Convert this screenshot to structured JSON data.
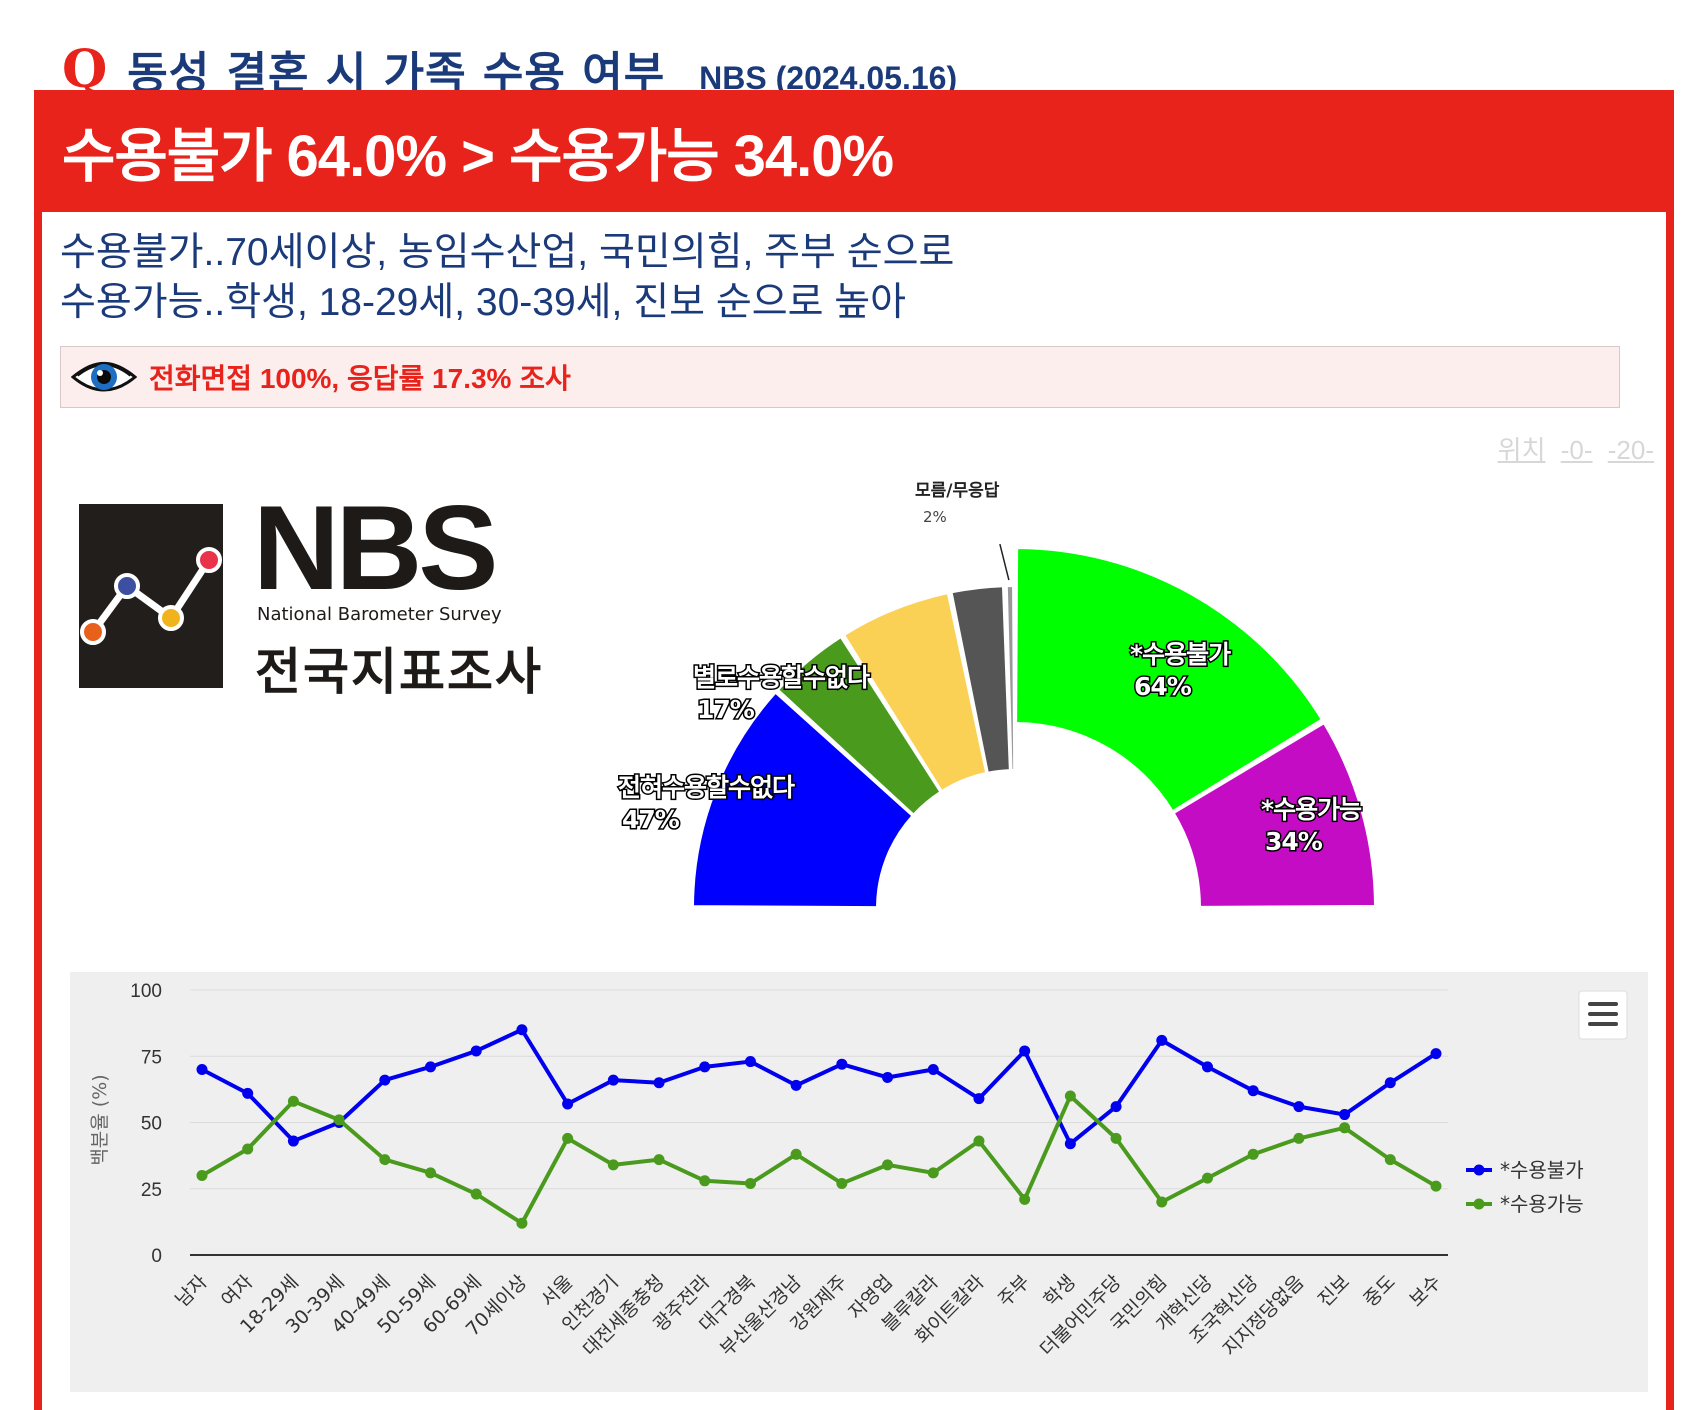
{
  "header": {
    "q_mark": "Q",
    "title": "동성 결혼 시 가족 수용 여부",
    "source": "NBS (2024.05.16)"
  },
  "banner": {
    "headline": "수용불가 64.0% > 수용가능 34.0%"
  },
  "summary": {
    "line1": "수용불가..70세이상, 농임수산업, 국민의힘, 주부 순으로",
    "line2": "수용가능..학생, 18-29세, 30-39세, 진보 순으로 높아"
  },
  "method": {
    "icon": "eye-icon",
    "text": "전화면접 100%, 응답률 17.3% 조사"
  },
  "pager": {
    "label": "위치",
    "links": [
      "-0-",
      "-20-"
    ]
  },
  "logo": {
    "brand": "NBS",
    "english": "National Barometer Survey",
    "korean": "전국지표조사"
  },
  "colors": {
    "accent": "#e8231b",
    "navy": "#1b3a7a"
  },
  "chart_data": [
    {
      "type": "pie",
      "subtype": "semi-donut",
      "inner": [
        {
          "label": "전혀수용할수없다",
          "value": 47,
          "display": "47%",
          "color": "#0000ff"
        },
        {
          "label": "별로수용할수없다",
          "value": 17,
          "display": "17%",
          "color": "#4a9a1e"
        },
        {
          "label": "",
          "value": 23,
          "display": "",
          "color": "#fbd155"
        },
        {
          "label": "",
          "value": 11,
          "display": "",
          "color": "#555555"
        },
        {
          "label": "모름/무응답",
          "value": 2,
          "display": "2%",
          "color": "#999999"
        }
      ],
      "outer": [
        {
          "label": "*수용불가",
          "value": 64,
          "display": "64%",
          "color": "#00ff00"
        },
        {
          "label": "*수용가능",
          "value": 34,
          "display": "34%",
          "color": "#c40cc4"
        }
      ]
    },
    {
      "type": "line",
      "ylabel": "백분율 (%)",
      "ylim": [
        0,
        100
      ],
      "yticks": [
        "0",
        "25",
        "50",
        "75",
        "100"
      ],
      "categories": [
        "남자",
        "여자",
        "18-29세",
        "30-39세",
        "40-49세",
        "50-59세",
        "60-69세",
        "70세이상",
        "서울",
        "인천경기",
        "대전세종충청",
        "광주전라",
        "대구경북",
        "부산울산경남",
        "강원제주",
        "자영업",
        "블루칼라",
        "화이트칼라",
        "주부",
        "학생",
        "더불어민주당",
        "국민의힘",
        "개혁신당",
        "조국혁신당",
        "지지정당없음",
        "진보",
        "중도",
        "보수"
      ],
      "series": [
        {
          "name": "*수용불가",
          "color": "#0000ee",
          "values": [
            70,
            61,
            43,
            50,
            66,
            71,
            77,
            85,
            57,
            66,
            65,
            71,
            73,
            64,
            72,
            67,
            70,
            59,
            77,
            42,
            56,
            81,
            71,
            62,
            56,
            53,
            65,
            76
          ]
        },
        {
          "name": "*수용가능",
          "color": "#4a9a1e",
          "values": [
            30,
            40,
            58,
            51,
            36,
            31,
            23,
            12,
            44,
            34,
            36,
            28,
            27,
            38,
            27,
            34,
            31,
            43,
            21,
            60,
            44,
            20,
            29,
            38,
            44,
            48,
            36,
            26
          ]
        }
      ],
      "menu_icon": "hamburger-menu-icon"
    }
  ]
}
